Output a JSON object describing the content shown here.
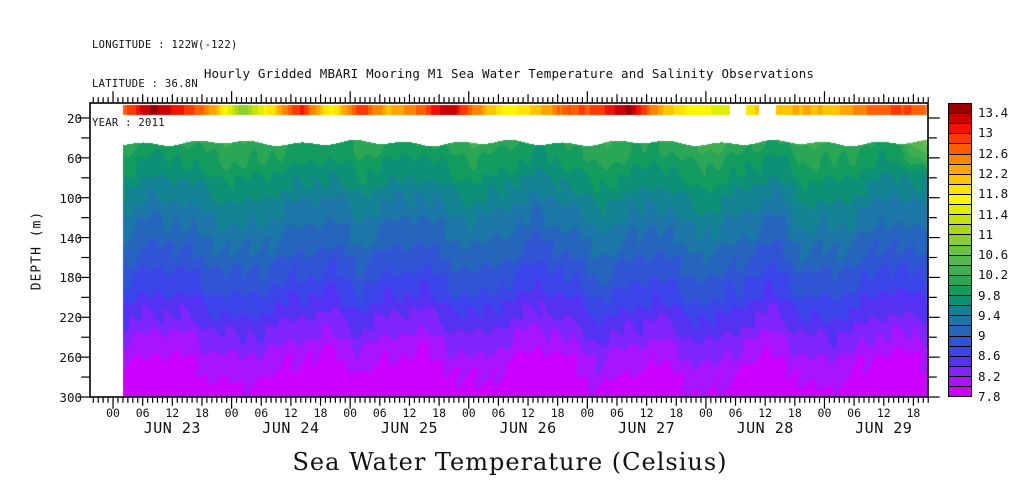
{
  "header": {
    "longitude": "LONGITUDE : 122W(-122)",
    "latitude": "LATITUDE : 36.8N",
    "year": "YEAR : 2011"
  },
  "plot_title": "Hourly Gridded MBARI Mooring M1 Sea Water Temperature and Salinity Observations",
  "bottom_title": "Sea Water Temperature (Celsius)",
  "y_axis": {
    "label": "DEPTH (m)",
    "tick_labels": [
      "20",
      "60",
      "100",
      "140",
      "180",
      "220",
      "260",
      "300"
    ],
    "tick_values_m": [
      20,
      60,
      100,
      140,
      180,
      220,
      260,
      300
    ],
    "minor_tick_step_m": 20,
    "range_m": [
      5,
      300
    ]
  },
  "x_axis": {
    "hour_labels": [
      "00",
      "06",
      "12",
      "18"
    ],
    "day_labels": [
      "JUN 23",
      "JUN 24",
      "JUN 25",
      "JUN 26",
      "JUN 27",
      "JUN 28",
      "JUN 29"
    ]
  },
  "colorbar": {
    "labels": [
      "7.8",
      "8.2",
      "8.6",
      "9",
      "9.4",
      "9.8",
      "10.2",
      "10.6",
      "11",
      "11.4",
      "11.8",
      "12.2",
      "12.6",
      "13",
      "13.4"
    ],
    "value_min": 7.8,
    "value_max": 13.6,
    "step_per_cell": 0.2,
    "cell_colors_bottom_to_top": [
      "#CC00FF",
      "#A814FD",
      "#7F24FA",
      "#5531F4",
      "#3C45EA",
      "#2F55D5",
      "#2566BC",
      "#1D76A8",
      "#138394",
      "#0E9077",
      "#149C5E",
      "#2BA556",
      "#3FAE52",
      "#52B84F",
      "#68C243",
      "#8ACE30",
      "#A8D71D",
      "#C6E20C",
      "#E2EE00",
      "#FAF600",
      "#FFE400",
      "#FFC400",
      "#FFA400",
      "#FF8400",
      "#FF5F00",
      "#FF3800",
      "#F51000",
      "#CC0000",
      "#980000"
    ]
  },
  "chart_data": {
    "type": "heatmap",
    "title": "Hourly Gridded MBARI Mooring M1 Sea Water Temperature and Salinity Observations",
    "units": "Celsius",
    "value_range_c": [
      7.8,
      13.6
    ],
    "time_hours_since_jun23_00": [
      2,
      8,
      14,
      20,
      26,
      32,
      38,
      44,
      50,
      56,
      62,
      68,
      74,
      80,
      86,
      92,
      98,
      104,
      110,
      116,
      122,
      128,
      134,
      140,
      146,
      152,
      158,
      164
    ],
    "surface_depth_m": 10,
    "surface_values_c": [
      12.7,
      13.45,
      13.1,
      12.3,
      10.9,
      11.9,
      13.1,
      11.7,
      12.9,
      12.2,
      12.6,
      13.45,
      12.4,
      11.6,
      12.2,
      12.7,
      12.9,
      13.45,
      12.4,
      11.8,
      11.5,
      null,
      12.0,
      12.3,
      12.1,
      12.6,
      12.9,
      12.6
    ],
    "depths_m": [
      45,
      60,
      75,
      90,
      105,
      120,
      135,
      150,
      165,
      180,
      195,
      210,
      225,
      240,
      255,
      270,
      285,
      300
    ],
    "values_c": [
      [
        10.1,
        9.93,
        9.97,
        10.13,
        10.21,
        10.11,
        10.01,
        9.93,
        10.13,
        9.99,
        9.91,
        10.09,
        10.19,
        10.03,
        9.89,
        10.01,
        10.23,
        10.13,
        9.99,
        10.19,
        10.25,
        10.05,
        9.93,
        10.21,
        10.19,
        10.07,
        9.91,
        10.75
      ],
      [
        9.95,
        9.78,
        9.82,
        9.98,
        10.06,
        9.96,
        9.86,
        9.78,
        9.98,
        9.84,
        9.76,
        9.94,
        10.04,
        9.88,
        9.74,
        9.86,
        10.08,
        9.98,
        9.84,
        10.04,
        10.1,
        9.9,
        9.78,
        10.06,
        10.04,
        9.92,
        9.76,
        10.3
      ],
      [
        9.8,
        9.63,
        9.67,
        9.83,
        9.91,
        9.81,
        9.71,
        9.63,
        9.83,
        9.69,
        9.61,
        9.79,
        9.89,
        9.73,
        9.59,
        9.71,
        9.93,
        9.83,
        9.69,
        9.89,
        9.95,
        9.75,
        9.63,
        9.91,
        9.89,
        9.77,
        9.61,
        9.75
      ],
      [
        9.65,
        9.48,
        9.52,
        9.68,
        9.76,
        9.66,
        9.56,
        9.48,
        9.68,
        9.54,
        9.46,
        9.64,
        9.74,
        9.58,
        9.44,
        9.56,
        9.78,
        9.68,
        9.54,
        9.74,
        9.8,
        9.6,
        9.48,
        9.76,
        9.74,
        9.62,
        9.46,
        9.6
      ],
      [
        9.5,
        9.33,
        9.37,
        9.53,
        9.61,
        9.51,
        9.41,
        9.33,
        9.53,
        9.39,
        9.31,
        9.49,
        9.59,
        9.43,
        9.29,
        9.41,
        9.63,
        9.53,
        9.39,
        9.59,
        9.65,
        9.45,
        9.33,
        9.61,
        9.59,
        9.47,
        9.31,
        9.45
      ],
      [
        9.37,
        9.2,
        9.24,
        9.4,
        9.48,
        9.38,
        9.28,
        9.2,
        9.4,
        9.26,
        9.18,
        9.36,
        9.46,
        9.3,
        9.16,
        9.28,
        9.5,
        9.4,
        9.26,
        9.46,
        9.52,
        9.32,
        9.2,
        9.48,
        9.46,
        9.34,
        9.18,
        9.32
      ],
      [
        9.25,
        9.08,
        9.12,
        9.28,
        9.36,
        9.26,
        9.16,
        9.08,
        9.28,
        9.14,
        9.06,
        9.24,
        9.34,
        9.18,
        9.04,
        9.16,
        9.38,
        9.28,
        9.14,
        9.34,
        9.4,
        9.2,
        9.08,
        9.36,
        9.34,
        9.22,
        9.06,
        9.2
      ],
      [
        9.13,
        8.96,
        9.0,
        9.16,
        9.24,
        9.14,
        9.04,
        8.96,
        9.16,
        9.02,
        8.94,
        9.12,
        9.22,
        9.06,
        8.92,
        9.04,
        9.26,
        9.16,
        9.02,
        9.22,
        9.28,
        9.08,
        8.96,
        9.24,
        9.22,
        9.1,
        8.94,
        9.08
      ],
      [
        9.0,
        8.83,
        8.87,
        9.03,
        9.11,
        9.01,
        8.91,
        8.83,
        9.03,
        8.89,
        8.81,
        8.99,
        9.09,
        8.93,
        8.79,
        8.91,
        9.13,
        9.03,
        8.89,
        9.09,
        9.15,
        8.95,
        8.83,
        9.11,
        9.09,
        8.97,
        8.81,
        8.95
      ],
      [
        8.87,
        8.7,
        8.74,
        8.9,
        8.98,
        8.88,
        8.78,
        8.7,
        8.9,
        8.76,
        8.68,
        8.86,
        8.96,
        8.8,
        8.66,
        8.78,
        9.0,
        8.9,
        8.76,
        8.96,
        9.02,
        8.82,
        8.7,
        8.98,
        8.96,
        8.84,
        8.68,
        8.82
      ],
      [
        8.75,
        8.58,
        8.62,
        8.78,
        8.86,
        8.76,
        8.66,
        8.58,
        8.78,
        8.64,
        8.56,
        8.74,
        8.84,
        8.68,
        8.54,
        8.66,
        8.88,
        8.78,
        8.64,
        8.84,
        8.9,
        8.7,
        8.58,
        8.86,
        8.84,
        8.72,
        8.56,
        8.7
      ],
      [
        8.6,
        8.43,
        8.47,
        8.63,
        8.71,
        8.61,
        8.51,
        8.43,
        8.63,
        8.49,
        8.41,
        8.59,
        8.69,
        8.53,
        8.39,
        8.51,
        8.73,
        8.63,
        8.49,
        8.69,
        8.75,
        8.55,
        8.43,
        8.71,
        8.69,
        8.57,
        8.41,
        8.55
      ],
      [
        8.45,
        8.28,
        8.32,
        8.48,
        8.56,
        8.46,
        8.36,
        8.28,
        8.48,
        8.34,
        8.26,
        8.44,
        8.54,
        8.38,
        8.24,
        8.36,
        8.58,
        8.48,
        8.34,
        8.54,
        8.6,
        8.4,
        8.28,
        8.56,
        8.54,
        8.42,
        8.26,
        8.4
      ],
      [
        8.3,
        8.13,
        8.17,
        8.33,
        8.41,
        8.31,
        8.21,
        8.13,
        8.33,
        8.19,
        8.11,
        8.29,
        8.39,
        8.23,
        8.09,
        8.21,
        8.43,
        8.33,
        8.19,
        8.39,
        8.45,
        8.25,
        8.13,
        8.41,
        8.39,
        8.27,
        8.11,
        8.25
      ],
      [
        8.15,
        7.98,
        8.02,
        8.18,
        8.26,
        8.16,
        8.06,
        7.98,
        8.18,
        8.04,
        7.96,
        8.14,
        8.24,
        8.08,
        7.94,
        8.06,
        8.28,
        8.18,
        8.04,
        8.24,
        8.3,
        8.1,
        7.98,
        8.26,
        8.24,
        8.12,
        7.96,
        8.1
      ],
      [
        8.03,
        7.86,
        7.9,
        8.06,
        8.14,
        8.04,
        7.94,
        7.86,
        8.06,
        7.92,
        7.84,
        8.02,
        8.12,
        7.96,
        7.82,
        7.94,
        8.16,
        8.06,
        7.92,
        8.12,
        8.18,
        7.98,
        7.86,
        8.14,
        8.12,
        8.0,
        7.84,
        7.98
      ],
      [
        7.93,
        7.76,
        7.8,
        7.96,
        8.04,
        7.94,
        7.84,
        7.76,
        7.96,
        7.82,
        7.74,
        7.92,
        8.02,
        7.86,
        7.72,
        7.84,
        8.06,
        7.96,
        7.82,
        8.02,
        8.08,
        7.88,
        7.76,
        8.04,
        8.02,
        7.9,
        7.74,
        7.88
      ],
      [
        7.85,
        7.68,
        7.72,
        7.88,
        7.96,
        7.86,
        7.76,
        7.68,
        7.88,
        7.74,
        7.66,
        7.84,
        7.94,
        7.78,
        7.64,
        7.76,
        7.98,
        7.88,
        7.74,
        7.94,
        8.0,
        7.8,
        7.68,
        7.96,
        7.94,
        7.82,
        7.66,
        7.8
      ]
    ]
  }
}
